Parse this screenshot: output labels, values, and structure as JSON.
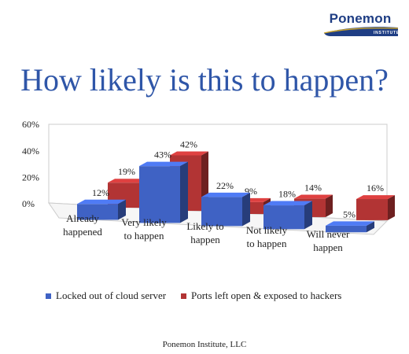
{
  "logo": {
    "name": "Ponemon",
    "sub": "INSTITUTE"
  },
  "chart_data": {
    "type": "bar",
    "title": "How likely is this to happen?",
    "categories": [
      [
        "Already",
        "happened"
      ],
      [
        "Very likely",
        "to happen"
      ],
      [
        "Likely to",
        "happen"
      ],
      [
        "Not likely",
        "to happen"
      ],
      [
        "Will never",
        "happen"
      ]
    ],
    "series": [
      {
        "name": "Locked out of cloud server",
        "values": [
          12,
          43,
          22,
          18,
          5
        ],
        "color": "#3f62c4"
      },
      {
        "name": "Ports left open & exposed to hackers",
        "values": [
          19,
          42,
          9,
          14,
          16
        ],
        "color": "#b23434"
      }
    ],
    "yticks": [
      "60%",
      "40%",
      "20%",
      "0%"
    ],
    "ylim": [
      0,
      60
    ],
    "value_suffix": "%",
    "legend_position": "bottom",
    "style": "3d-perspective"
  },
  "footer": "Ponemon Institute, LLC"
}
